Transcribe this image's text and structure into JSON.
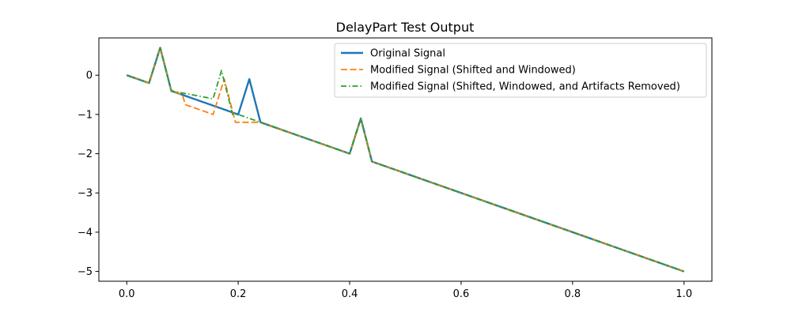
{
  "chart_data": {
    "type": "line",
    "title": "DelayPart Test Output",
    "xlabel": "",
    "ylabel": "",
    "xlim": [
      -0.05,
      1.05
    ],
    "ylim": [
      -5.25,
      0.95
    ],
    "x_ticks": [
      0.0,
      0.2,
      0.4,
      0.6,
      0.8,
      1.0
    ],
    "x_tick_labels": [
      "0.0",
      "0.2",
      "0.4",
      "0.6",
      "0.8",
      "1.0"
    ],
    "y_ticks": [
      0,
      -1,
      -2,
      -3,
      -4,
      -5
    ],
    "y_tick_labels": [
      "0",
      "−1",
      "−2",
      "−3",
      "−4",
      "−5"
    ],
    "grid": false,
    "legend_position": "upper right",
    "series": [
      {
        "name": "Original Signal",
        "color": "#1f77b4",
        "line_style": "solid",
        "x": [
          0.0,
          0.04,
          0.06,
          0.08,
          0.2,
          0.22,
          0.24,
          0.4,
          0.42,
          0.44,
          1.0
        ],
        "y": [
          0.0,
          -0.2,
          0.7,
          -0.4,
          -1.0,
          -0.1,
          -1.2,
          -2.0,
          -1.1,
          -2.2,
          -5.0
        ]
      },
      {
        "name": "Modified Signal (Shifted and Windowed)",
        "color": "#ff7f0e",
        "line_style": "dashed",
        "x": [
          0.0,
          0.04,
          0.06,
          0.08,
          0.1,
          0.105,
          0.155,
          0.175,
          0.195,
          0.24,
          0.4,
          0.42,
          0.44,
          1.0
        ],
        "y": [
          0.0,
          -0.2,
          0.7,
          -0.4,
          -0.5,
          -0.75,
          -1.0,
          -0.1,
          -1.2,
          -1.2,
          -2.0,
          -1.1,
          -2.2,
          -5.0
        ]
      },
      {
        "name": "Modified Signal (Shifted, Windowed, and Artifacts Removed)",
        "color": "#2ca02c",
        "line_style": "dashdot",
        "x": [
          0.0,
          0.04,
          0.06,
          0.08,
          0.155,
          0.17,
          0.19,
          0.2,
          0.24,
          0.4,
          0.42,
          0.44,
          1.0
        ],
        "y": [
          0.0,
          -0.2,
          0.7,
          -0.4,
          -0.6,
          0.12,
          -1.0,
          -1.0,
          -1.2,
          -2.0,
          -1.1,
          -2.2,
          -5.0
        ]
      }
    ]
  }
}
